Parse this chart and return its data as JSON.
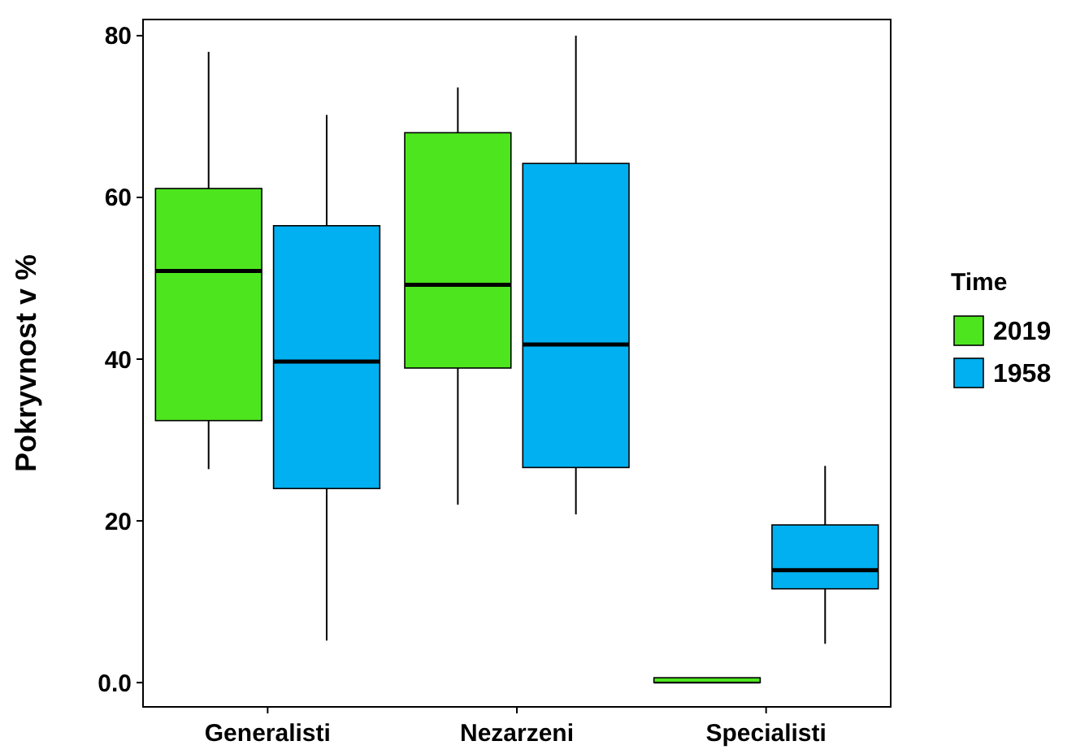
{
  "chart_data": {
    "type": "box",
    "ylabel": "Pokryvnost v %",
    "legend_title": "Time",
    "legend": "right",
    "grid": false,
    "categories": [
      "Generalisti",
      "Nezarzeni",
      "Specialisti"
    ],
    "ylim": [
      -3,
      82
    ],
    "yticks": [
      {
        "value": 0,
        "label": "0.0"
      },
      20,
      40,
      60,
      80
    ],
    "series": [
      {
        "name": "2019",
        "color": "#4de61e",
        "boxes": [
          {
            "low": 26.4,
            "q1": 32.4,
            "median": 50.9,
            "q3": 61.1,
            "high": 78
          },
          {
            "low": 22,
            "q1": 38.9,
            "median": 49.2,
            "q3": 68,
            "high": 73.6
          },
          {
            "low": 0,
            "q1": 0,
            "median": 0,
            "q3": 0,
            "high": 0
          }
        ]
      },
      {
        "name": "1958",
        "color": "#00b0f0",
        "boxes": [
          {
            "low": 5.2,
            "q1": 24,
            "median": 39.7,
            "q3": 56.5,
            "high": 70.2
          },
          {
            "low": 20.8,
            "q1": 26.6,
            "median": 41.8,
            "q3": 64.2,
            "high": 80
          },
          {
            "low": 4.8,
            "q1": 11.6,
            "median": 13.9,
            "q3": 19.5,
            "high": 26.8
          }
        ]
      }
    ]
  }
}
